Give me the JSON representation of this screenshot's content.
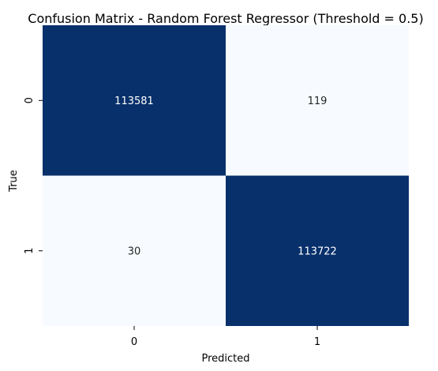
{
  "chart_data": {
    "type": "heatmap",
    "title": "Confusion Matrix - Random Forest Regressor (Threshold = 0.5)",
    "xlabel": "Predicted",
    "ylabel": "True",
    "x_tick_labels": [
      "0",
      "1"
    ],
    "y_tick_labels": [
      "0",
      "1"
    ],
    "matrix": [
      [
        113581,
        119
      ],
      [
        30,
        113722
      ]
    ],
    "colormap": "Blues",
    "colorbar": false,
    "colors": {
      "high": "#08306b",
      "low": "#f7fbff",
      "text_on_dark": "#ffffff",
      "text_on_light": "#262626"
    }
  }
}
